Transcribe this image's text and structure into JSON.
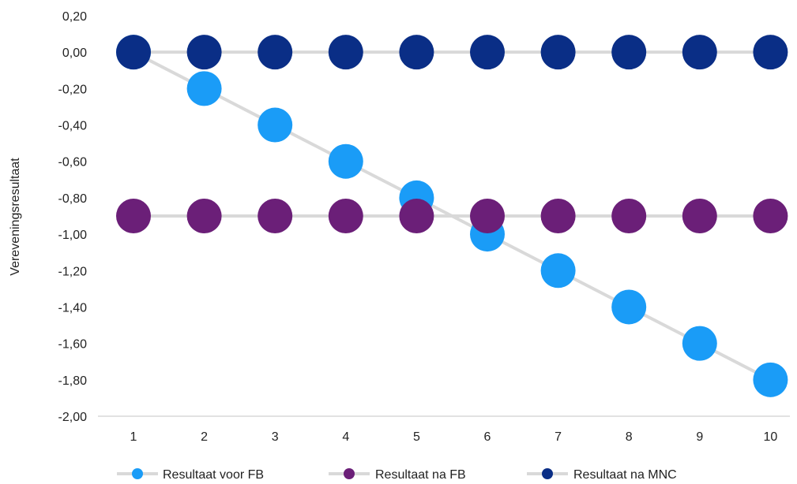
{
  "chart_data": {
    "type": "line",
    "title": "",
    "xlabel": "",
    "ylabel": "Vereveningsresultaat",
    "x": [
      1,
      2,
      3,
      4,
      5,
      6,
      7,
      8,
      9,
      10
    ],
    "x_ticks": [
      "1",
      "2",
      "3",
      "4",
      "5",
      "6",
      "7",
      "8",
      "9",
      "10"
    ],
    "ylim": [
      -2.0,
      0.2
    ],
    "y_ticks": [
      "0,20",
      "0,00",
      "-0,20",
      "-0,40",
      "-0,60",
      "-0,80",
      "-1,00",
      "-1,20",
      "-1,40",
      "-1,60",
      "-1,80",
      "-2,00"
    ],
    "grid": false,
    "legend_position": "bottom",
    "series": [
      {
        "name": "Resultaat voor FB",
        "color": "#1a9cf7",
        "values": [
          0,
          -0.2,
          -0.4,
          -0.6,
          -0.8,
          -1.0,
          -1.2,
          -1.4,
          -1.6,
          -1.8
        ]
      },
      {
        "name": "Resultaat na FB",
        "color": "#6b1f78",
        "values": [
          -0.9,
          -0.9,
          -0.9,
          -0.9,
          -0.9,
          -0.9,
          -0.9,
          -0.9,
          -0.9,
          -0.9
        ]
      },
      {
        "name": "Resultaat na MNC",
        "color": "#0a2e86",
        "values": [
          0,
          0,
          0,
          0,
          0,
          0,
          0,
          0,
          0,
          0
        ]
      }
    ],
    "line_color": "#d9d9d9"
  }
}
